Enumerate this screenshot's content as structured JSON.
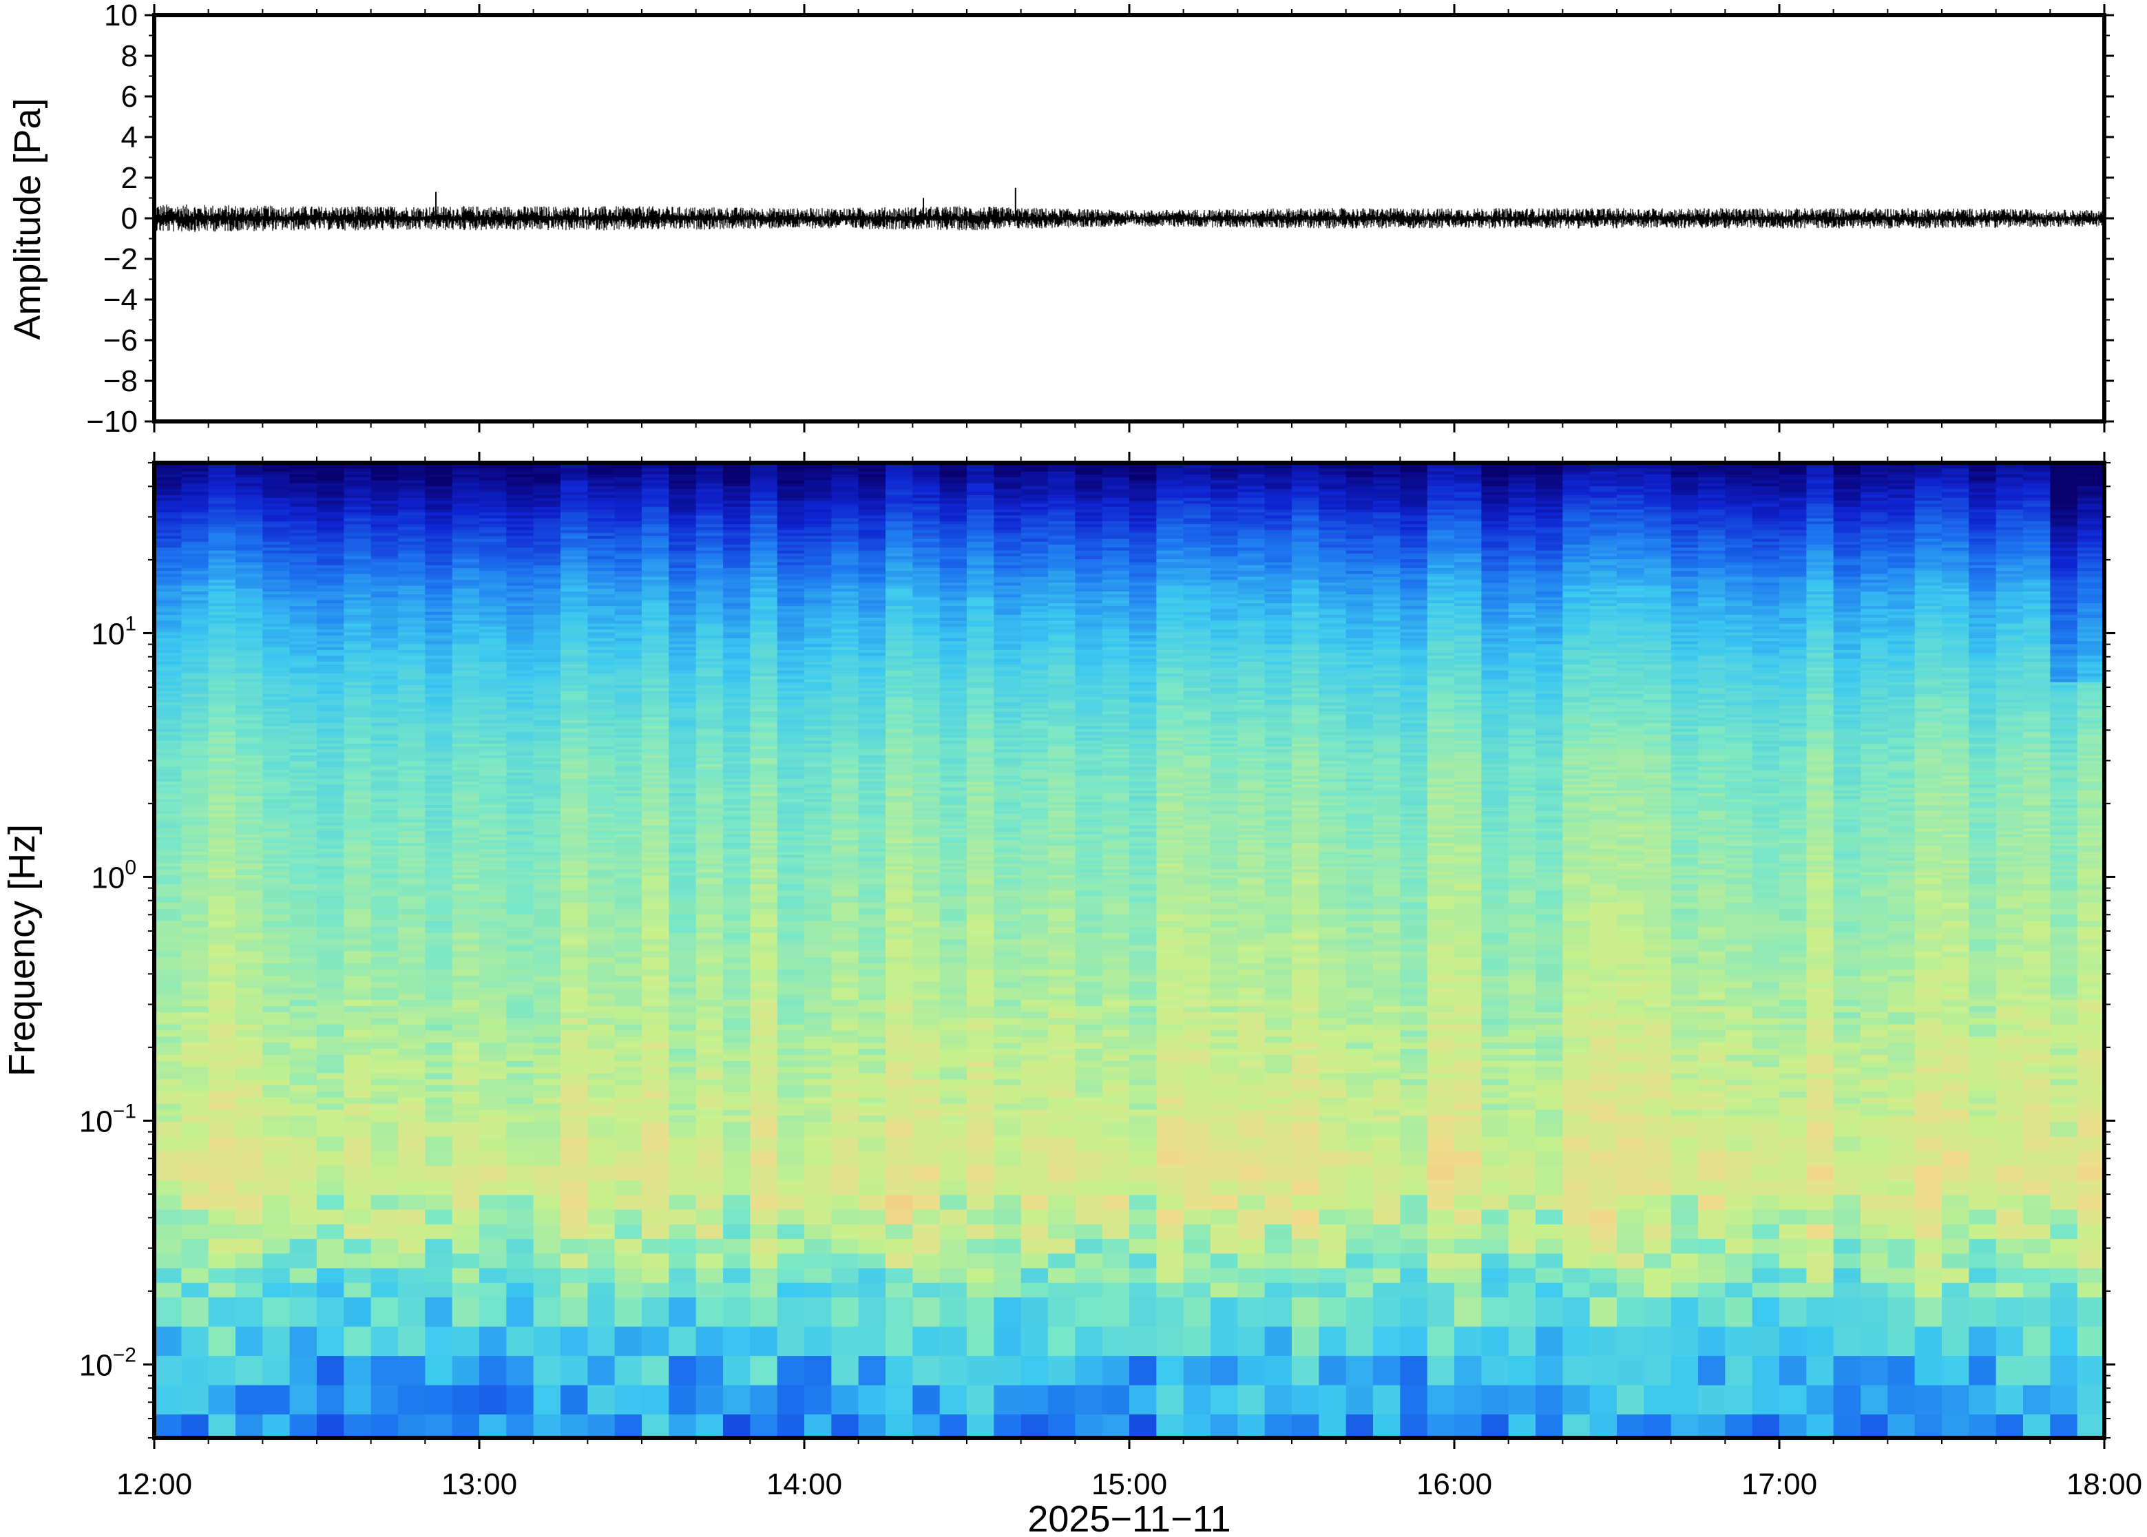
{
  "chart_data": [
    {
      "type": "line",
      "ylabel": "Amplitude [Pa]",
      "xlabel": "",
      "xlim": [
        "12:00",
        "18:00"
      ],
      "ylim": [
        -10,
        10
      ],
      "yticks": [
        "10",
        "8",
        "6",
        "4",
        "2",
        "0",
        "−2",
        "−4",
        "−6",
        "−8",
        "−10"
      ],
      "trace_envelope": {
        "hours": [
          12.0,
          12.5,
          13.0,
          13.5,
          14.0,
          14.5,
          15.0,
          15.5,
          16.0,
          16.5,
          17.0,
          17.5,
          18.0
        ],
        "max_abs_pa": [
          0.7,
          0.6,
          0.6,
          0.6,
          0.5,
          0.6,
          0.4,
          0.5,
          0.5,
          0.5,
          0.5,
          0.5,
          0.4
        ]
      },
      "spikes": [
        {
          "time": "12:52",
          "value": 1.3
        },
        {
          "time": "14:39",
          "value": 1.5
        },
        {
          "time": "14:22",
          "value": 1.0
        }
      ],
      "color": "#000000"
    },
    {
      "type": "heatmap",
      "ylabel": "Frequency [Hz]",
      "xlabel": "2025−11−11",
      "x_tick_labels": [
        "12:00",
        "13:00",
        "14:00",
        "15:00",
        "16:00",
        "17:00",
        "18:00"
      ],
      "y_scale": "log",
      "ylim_hz": [
        0.005,
        50
      ],
      "y_tick_labels": [
        {
          "base": "10",
          "exp": "1"
        },
        {
          "base": "10",
          "exp": "0"
        },
        {
          "base": "10",
          "exp": "−1"
        },
        {
          "base": "10",
          "exp": "−2"
        }
      ],
      "colormap": [
        "#08006e",
        "#0f24d2",
        "#1e78f0",
        "#3cc8f0",
        "#78e6c8",
        "#c8f08c",
        "#f0dc8c",
        "#f5b46e"
      ],
      "band_structure_db": {
        "freq_hz": [
          50,
          30,
          15,
          7,
          3,
          1,
          0.3,
          0.1,
          0.06,
          0.03,
          0.015,
          0.008,
          0.005
        ],
        "level_0to1": [
          0.02,
          0.18,
          0.36,
          0.48,
          0.58,
          0.63,
          0.68,
          0.74,
          0.78,
          0.66,
          0.5,
          0.38,
          0.33
        ]
      }
    }
  ]
}
